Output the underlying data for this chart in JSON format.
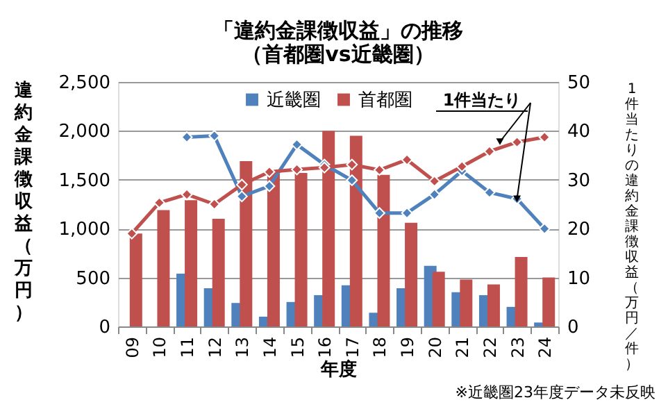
{
  "chart_data": {
    "type": "bar",
    "title": "「違約金課徴収益」の推移",
    "subtitle": "（首都圏vs近畿圏）",
    "xlabel": "年度",
    "ylabel": "違約金課徴収益（万円）",
    "y2label": "1件当たりの違約金課徴収益（万円／件）",
    "annotations": [
      {
        "text": "1件当たり",
        "x": "23",
        "y": 1305
      },
      "※近畿圏23年度データ未反映"
    ],
    "categories": [
      "09",
      "10",
      "11",
      "12",
      "13",
      "14",
      "15",
      "16",
      "17",
      "18",
      "19",
      "20",
      "21",
      "22",
      "23",
      "24"
    ],
    "series": [
      {
        "name": "近畿圏",
        "color": "#4f81bd",
        "values": [
          null,
          null,
          540,
          390,
          240,
          100,
          250,
          320,
          420,
          140,
          390,
          620,
          350,
          320,
          200,
          40
        ]
      },
      {
        "name": "首都圏",
        "color": "#c0504d",
        "values": [
          950,
          1190,
          1290,
          1100,
          1690,
          1590,
          1570,
          2000,
          1950,
          1550,
          1060,
          560,
          480,
          430,
          710,
          500
        ]
      },
      {
        "type": "line",
        "axis": "y2",
        "color": "#4f81bd",
        "marker": "diamond",
        "values": [
          null,
          null,
          38.7,
          39,
          26.6,
          28.7,
          37.2,
          33.1,
          29.9,
          23.2,
          23.2,
          27,
          31.8,
          27.4,
          26.1,
          20
        ]
      },
      {
        "type": "line",
        "axis": "y2",
        "color": "#c0504d",
        "marker": "diamond",
        "values": [
          19,
          25.3,
          27,
          25,
          29,
          31.6,
          32.1,
          32.5,
          33.1,
          32,
          34.1,
          29.7,
          32.7,
          35.8,
          37.7,
          38.7
        ]
      }
    ],
    "ylim": [
      0,
      2500
    ],
    "yticks": [
      0,
      {
        "value": 500,
        "label": "500"
      },
      {
        "value": 1000,
        "label": "1,000"
      },
      {
        "value": 1500,
        "label": "1,500"
      },
      {
        "value": 2000,
        "label": "2,000"
      },
      {
        "value": 2500,
        "label": "2,500"
      }
    ],
    "y2lim": [
      0,
      50
    ],
    "y2ticks": [
      0,
      10,
      20,
      30,
      40,
      50
    ],
    "grid": "y",
    "legend": "top"
  }
}
